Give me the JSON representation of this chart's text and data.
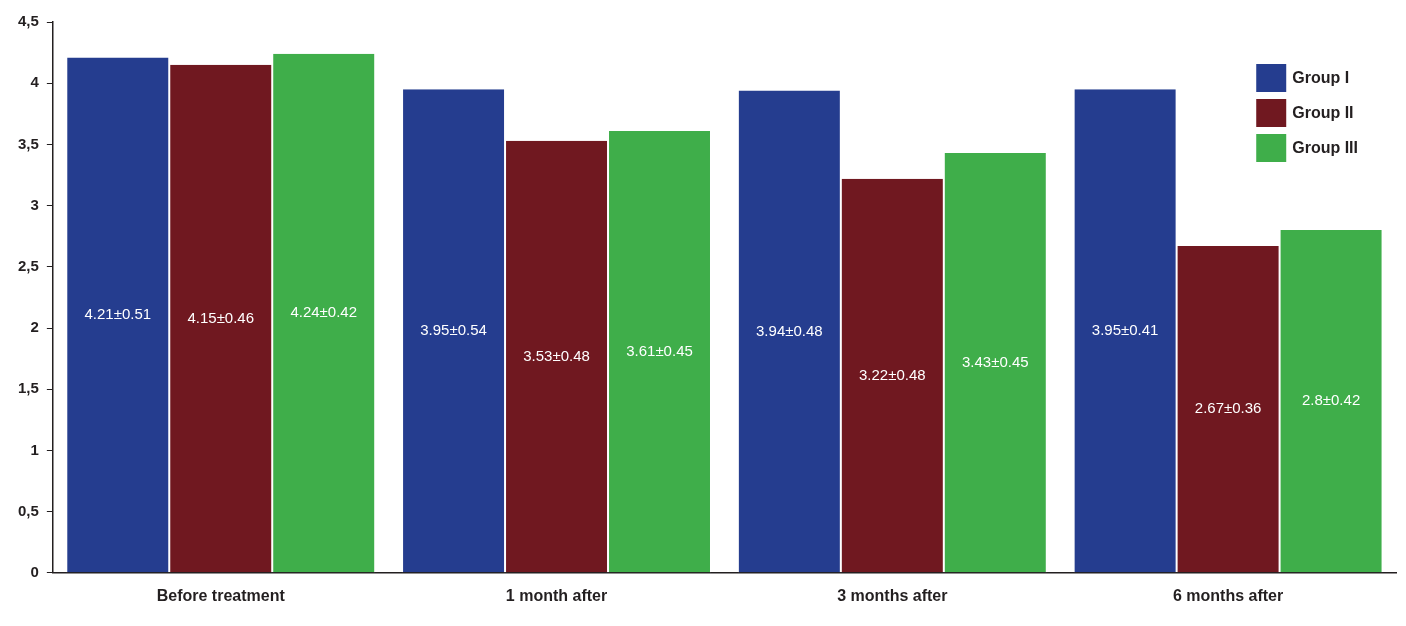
{
  "chart_data": {
    "type": "bar",
    "categories": [
      "Before treatment",
      "1 month after",
      "3 months after",
      "6 months after"
    ],
    "series": [
      {
        "name": "Group I",
        "color": "#253d8f",
        "values": [
          4.21,
          3.95,
          3.94,
          3.95
        ],
        "value_labels": [
          "4.21±0.51",
          "3.95±0.54",
          "3.94±0.48",
          "3.95±0.41"
        ]
      },
      {
        "name": "Group II",
        "color": "#701820",
        "values": [
          4.15,
          3.53,
          3.22,
          2.67
        ],
        "value_labels": [
          "4.15±0.46",
          "3.53±0.48",
          "3.22±0.48",
          "2.67±0.36"
        ]
      },
      {
        "name": "Group III",
        "color": "#3fae4a",
        "values": [
          4.24,
          3.61,
          3.43,
          2.8
        ],
        "value_labels": [
          "4.24±0.42",
          "3.61±0.45",
          "3.43±0.45",
          "2.8±0.42"
        ]
      }
    ],
    "ylim": [
      0,
      4.5
    ],
    "yticks": [
      0,
      {
        "value": 0.5,
        "label": "0,5"
      },
      1,
      {
        "value": 1.5,
        "label": "1,5"
      },
      2,
      {
        "value": 2.5,
        "label": "2,5"
      },
      3,
      {
        "value": 3.5,
        "label": "3,5"
      },
      4,
      {
        "value": 4.5,
        "label": "4,5"
      }
    ],
    "grid": false,
    "legend": "top right"
  }
}
